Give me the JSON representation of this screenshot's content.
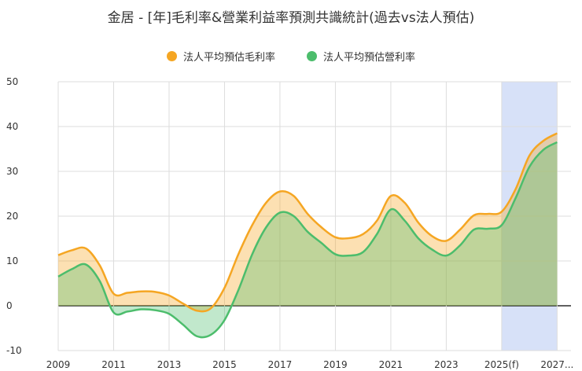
{
  "title": "金居 - [年]毛利率&營業利益率預測共識統計(過去vs法人預估)",
  "colors": {
    "gross": "#f5a623",
    "operating": "#4cbd6c",
    "forecast_band": "#d7e1f8",
    "grid": "#dddddd"
  },
  "chart_data": {
    "type": "area",
    "title": "金居 - [年]毛利率&營業利益率預測共識統計(過去vs法人預估)",
    "xlabel": "",
    "ylabel": "",
    "ylim": [
      -10,
      50
    ],
    "yticks": [
      -10,
      0,
      10,
      20,
      30,
      40,
      50
    ],
    "xlim": [
      2009,
      2027.5
    ],
    "x_tick_labels": [
      {
        "x": 2009,
        "label": "2009"
      },
      {
        "x": 2011,
        "label": "2011"
      },
      {
        "x": 2013,
        "label": "2013"
      },
      {
        "x": 2015,
        "label": "2015"
      },
      {
        "x": 2017,
        "label": "2017"
      },
      {
        "x": 2019,
        "label": "2019"
      },
      {
        "x": 2021,
        "label": "2021"
      },
      {
        "x": 2023,
        "label": "2023"
      },
      {
        "x": 2025,
        "label": "2025(f)"
      },
      {
        "x": 2027,
        "label": "2027..."
      }
    ],
    "forecast_range": [
      2025,
      2027
    ],
    "grid": true,
    "legend_position": "top-center",
    "x": [
      2009,
      2009.5,
      2010,
      2010.5,
      2011,
      2011.5,
      2012,
      2012.5,
      2013,
      2013.5,
      2014,
      2014.5,
      2015,
      2015.5,
      2016,
      2016.5,
      2017,
      2017.5,
      2018,
      2018.5,
      2019,
      2019.5,
      2020,
      2020.5,
      2021,
      2021.5,
      2022,
      2022.5,
      2023,
      2023.5,
      2024,
      2024.5,
      2025,
      2025.5,
      2026,
      2026.5,
      2027
    ],
    "series": [
      {
        "name": "法人平均預估毛利率",
        "color": "#f5a623",
        "values": [
          11.3,
          12.4,
          12.8,
          9.0,
          2.7,
          2.9,
          3.2,
          3.1,
          2.3,
          0.5,
          -1.1,
          -0.6,
          4.0,
          11.5,
          18.0,
          23.0,
          25.5,
          24.5,
          20.5,
          17.5,
          15.3,
          15.1,
          16.0,
          19.0,
          24.5,
          23.0,
          18.5,
          15.5,
          14.5,
          17.0,
          20.2,
          20.5,
          21.0,
          26.0,
          33.5,
          36.8,
          38.5
        ]
      },
      {
        "name": "法人平均預估營利率",
        "color": "#4cbd6c",
        "values": [
          6.5,
          8.2,
          9.2,
          5.5,
          -1.5,
          -1.3,
          -0.8,
          -1.0,
          -1.8,
          -4.2,
          -6.8,
          -6.5,
          -3.2,
          3.5,
          11.5,
          17.5,
          20.8,
          20.0,
          16.5,
          14.0,
          11.5,
          11.2,
          12.0,
          16.0,
          21.5,
          19.0,
          15.0,
          12.5,
          11.2,
          13.5,
          17.0,
          17.2,
          18.0,
          24.0,
          31.0,
          34.8,
          36.5
        ]
      }
    ]
  }
}
